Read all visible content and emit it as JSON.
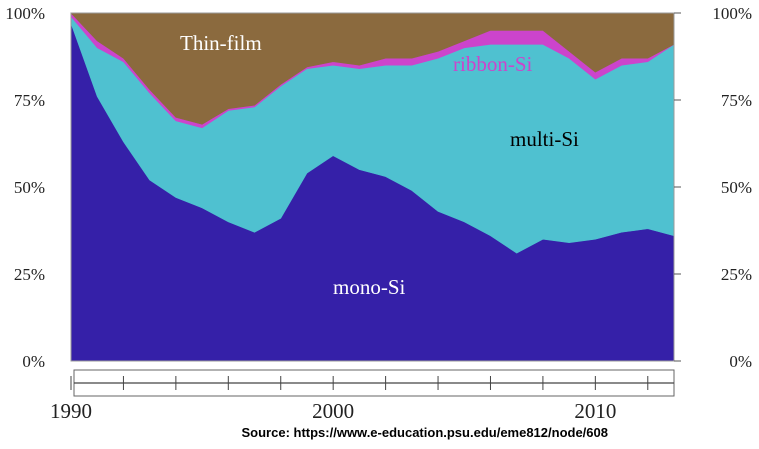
{
  "chart_data": {
    "type": "area",
    "stacked": true,
    "percent": true,
    "x": [
      1990,
      1991,
      1992,
      1993,
      1994,
      1995,
      1996,
      1997,
      1998,
      1999,
      2000,
      2001,
      2002,
      2003,
      2004,
      2005,
      2006,
      2007,
      2008,
      2009,
      2010,
      2011,
      2012,
      2013
    ],
    "series": [
      {
        "name": "mono-Si",
        "color": "#3520a8",
        "values": [
          97,
          76,
          63,
          52,
          47,
          44,
          40,
          37,
          41,
          54,
          59,
          55,
          53,
          49,
          43,
          40,
          36,
          31,
          35,
          34,
          35,
          37,
          38,
          36
        ]
      },
      {
        "name": "multi-Si",
        "color": "#4fc1d0",
        "values": [
          2,
          14,
          23,
          25,
          22,
          23,
          32,
          36,
          38,
          30,
          26,
          29,
          32,
          36,
          44,
          50,
          55,
          60,
          56,
          53,
          46,
          48,
          48,
          55
        ]
      },
      {
        "name": "ribbon-Si",
        "color": "#cc44cc",
        "values": [
          1,
          2,
          1,
          1,
          1,
          1,
          0.5,
          0.5,
          0.5,
          0.5,
          1,
          1,
          2,
          2,
          2,
          2,
          4,
          4,
          4,
          2,
          2,
          2,
          1,
          0
        ]
      },
      {
        "name": "Thin-film",
        "color": "#8b6a3e",
        "values": [
          0,
          8,
          13,
          22,
          30,
          32,
          27.5,
          26.5,
          20.5,
          15.5,
          14,
          15,
          13,
          13,
          11,
          8,
          5,
          5,
          5,
          11,
          17,
          13,
          13,
          9
        ]
      }
    ],
    "ylim": [
      0,
      100
    ],
    "xlim": [
      1990,
      2013
    ],
    "yticks": [
      "0%",
      "25%",
      "50%",
      "75%",
      "100%"
    ],
    "xticks": [
      "1990",
      "2000",
      "2010"
    ],
    "labels": {
      "thin_film": "Thin-film",
      "ribbon": "ribbon-Si",
      "multi": "multi-Si",
      "mono": "mono-Si"
    },
    "source": "Source: https://www.e-education.psu.edu/eme812/node/608"
  }
}
